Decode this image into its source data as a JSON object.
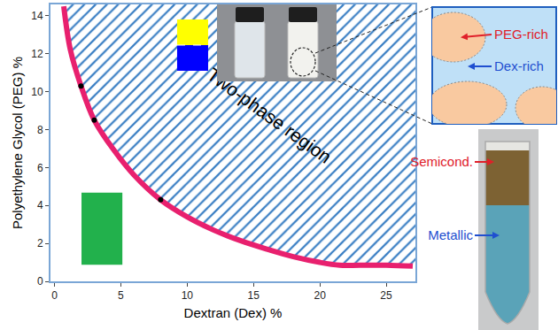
{
  "chart_data": {
    "type": "line",
    "xlabel": "Dextran (Dex) %",
    "ylabel": "Polyethylene Glycol (PEG) %",
    "xlim": [
      -0.3,
      27.2
    ],
    "ylim": [
      0,
      14.6
    ],
    "xticks": [
      0,
      5,
      10,
      15,
      20,
      25
    ],
    "yticks": [
      0,
      2,
      4,
      6,
      8,
      10,
      12,
      14
    ],
    "grid": false,
    "annotations": [
      {
        "text": "Two-phase region"
      }
    ],
    "series": [
      {
        "type": "line",
        "color": "#e8206e",
        "x": [
          0.7,
          1.2,
          2.0,
          3.0,
          4.5,
          6.0,
          8.0,
          10.0,
          12.0,
          14.0,
          16.0,
          18.0,
          20.0,
          21.5,
          23.0,
          25.0,
          27.0
        ],
        "values": [
          14.5,
          12.2,
          10.3,
          8.5,
          6.9,
          5.6,
          4.3,
          3.4,
          2.7,
          2.15,
          1.7,
          1.3,
          1.0,
          0.85,
          0.85,
          0.85,
          0.8
        ]
      },
      {
        "type": "scatter",
        "color": "#000000",
        "marker": "circle",
        "x": [
          2.0,
          3.0,
          8.0
        ],
        "values": [
          10.3,
          8.5,
          4.3
        ]
      }
    ]
  },
  "schematic": {
    "labels": [
      {
        "text": "PEG-rich",
        "color": "#e0202a"
      },
      {
        "text": "Dex-rich",
        "color": "#1f4fd0"
      }
    ]
  },
  "photo": {
    "labels": [
      {
        "text": "Semicond.",
        "color": "#e0202a"
      },
      {
        "text": "Metallic",
        "color": "#1f4fd0"
      }
    ]
  }
}
